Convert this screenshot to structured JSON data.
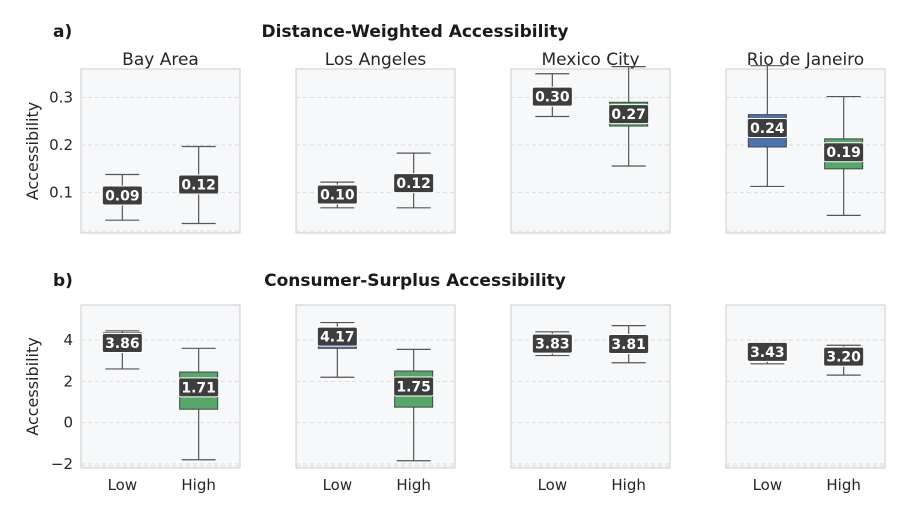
{
  "rows": [
    {
      "label": "a)",
      "title": "Distance-Weighted Accessibility",
      "ylabel": "Accessibility",
      "ylim": [
        0.015,
        0.36
      ],
      "yticks": [
        0.1,
        0.2,
        0.3
      ],
      "yticklabels": [
        "0.1",
        "0.2",
        "0.3"
      ]
    },
    {
      "label": "b)",
      "title": "Consumer-Surplus Accessibility",
      "ylabel": "Accessibility",
      "ylim": [
        -2.2,
        5.7
      ],
      "yticks": [
        -2,
        0,
        2,
        4
      ],
      "yticklabels": [
        "−2",
        "0",
        "2",
        "4"
      ]
    }
  ],
  "colors": {
    "low": "#4c72b0",
    "high": "#55a868",
    "panel_bg": "#f7f8fa",
    "panel_border": "#cccccc",
    "grid": "#dddddd",
    "label_bg": "#3d3d3d"
  },
  "chart_data": [
    {
      "type": "box",
      "title": "Distance-Weighted Accessibility",
      "ylabel": "Accessibility",
      "categories": [
        "Low",
        "High"
      ],
      "panels": [
        {
          "name": "Bay Area",
          "boxes": [
            {
              "category": "Low",
              "min": 0.042,
              "q1": 0.083,
              "median": 0.094,
              "q3": 0.105,
              "max": 0.138,
              "label": "0.09"
            },
            {
              "category": "High",
              "min": 0.035,
              "q1": 0.097,
              "median": 0.117,
              "q3": 0.136,
              "max": 0.197,
              "label": "0.12"
            }
          ]
        },
        {
          "name": "Los Angeles",
          "boxes": [
            {
              "category": "Low",
              "min": 0.068,
              "q1": 0.087,
              "median": 0.096,
              "q3": 0.104,
              "max": 0.122,
              "label": "0.10"
            },
            {
              "category": "High",
              "min": 0.068,
              "q1": 0.106,
              "median": 0.12,
              "q3": 0.134,
              "max": 0.183,
              "label": "0.12"
            }
          ]
        },
        {
          "name": "Mexico City",
          "boxes": [
            {
              "category": "Low",
              "min": 0.26,
              "q1": 0.29,
              "median": 0.302,
              "q3": 0.316,
              "max": 0.35,
              "label": "0.30"
            },
            {
              "category": "High",
              "min": 0.156,
              "q1": 0.24,
              "median": 0.265,
              "q3": 0.29,
              "max": 0.365,
              "label": "0.27"
            }
          ]
        },
        {
          "name": "Rio de Janeiro",
          "boxes": [
            {
              "category": "Low",
              "min": 0.113,
              "q1": 0.196,
              "median": 0.236,
              "q3": 0.264,
              "max": 0.367,
              "label": "0.24"
            },
            {
              "category": "High",
              "min": 0.052,
              "q1": 0.15,
              "median": 0.185,
              "q3": 0.213,
              "max": 0.302,
              "label": "0.19"
            }
          ]
        }
      ]
    },
    {
      "type": "box",
      "title": "Consumer-Surplus Accessibility",
      "ylabel": "Accessibility",
      "categories": [
        "Low",
        "High"
      ],
      "panels": [
        {
          "name": "Bay Area",
          "boxes": [
            {
              "category": "Low",
              "min": 2.6,
              "q1": 3.55,
              "median": 3.86,
              "q3": 4.35,
              "max": 4.45,
              "label": "3.86"
            },
            {
              "category": "High",
              "min": -1.8,
              "q1": 0.65,
              "median": 1.71,
              "q3": 2.45,
              "max": 3.6,
              "label": "1.71"
            }
          ]
        },
        {
          "name": "Los Angeles",
          "boxes": [
            {
              "category": "Low",
              "min": 2.2,
              "q1": 3.6,
              "median": 4.17,
              "q3": 4.55,
              "max": 4.85,
              "label": "4.17"
            },
            {
              "category": "High",
              "min": -1.85,
              "q1": 0.75,
              "median": 1.75,
              "q3": 2.5,
              "max": 3.55,
              "label": "1.75"
            }
          ]
        },
        {
          "name": "Mexico City",
          "boxes": [
            {
              "category": "Low",
              "min": 3.25,
              "q1": 3.65,
              "median": 3.83,
              "q3": 4.0,
              "max": 4.4,
              "label": "3.83"
            },
            {
              "category": "High",
              "min": 2.9,
              "q1": 3.55,
              "median": 3.81,
              "q3": 4.05,
              "max": 4.7,
              "label": "3.81"
            }
          ]
        },
        {
          "name": "Rio de Janeiro",
          "boxes": [
            {
              "category": "Low",
              "min": 2.85,
              "q1": 3.25,
              "median": 3.43,
              "q3": 3.6,
              "max": 3.85,
              "label": "3.43"
            },
            {
              "category": "High",
              "min": 2.3,
              "q1": 2.95,
              "median": 3.2,
              "q3": 3.4,
              "max": 3.75,
              "label": "3.20"
            }
          ]
        }
      ]
    }
  ]
}
